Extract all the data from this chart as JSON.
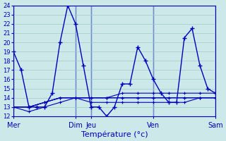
{
  "title": "",
  "xlabel": "Température (°c)",
  "ylabel": "",
  "ylim": [
    12,
    24
  ],
  "yticks": [
    12,
    13,
    14,
    15,
    16,
    17,
    18,
    19,
    20,
    21,
    22,
    23,
    24
  ],
  "background_color": "#cce8e8",
  "grid_color": "#99cccc",
  "line_color": "#0000bb",
  "series": [
    {
      "x": [
        0,
        1,
        2,
        3,
        4,
        5,
        6,
        7,
        8,
        9,
        10,
        11,
        12,
        13,
        14,
        15,
        16,
        17,
        18,
        19,
        20,
        21,
        22,
        23,
        24,
        25,
        26
      ],
      "y": [
        19,
        17,
        13,
        13,
        13,
        14.5,
        20,
        24,
        22,
        17.5,
        13,
        13,
        12,
        13,
        15.5,
        15.5,
        19.5,
        18,
        16,
        14.5,
        13.5,
        13.5,
        20.5,
        21.5,
        17.5,
        15,
        14.5
      ]
    },
    {
      "x": [
        0,
        2,
        4,
        6,
        8,
        10,
        12,
        14,
        16,
        18,
        20,
        22,
        24,
        26
      ],
      "y": [
        13,
        12.5,
        13,
        13.5,
        14,
        13.5,
        13.5,
        13.5,
        13.5,
        13.5,
        13.5,
        13.5,
        14,
        14
      ]
    },
    {
      "x": [
        0,
        2,
        4,
        6,
        8,
        10,
        12,
        14,
        16,
        18,
        20,
        22,
        24,
        26
      ],
      "y": [
        13,
        13,
        13.5,
        14,
        14,
        14,
        14,
        14,
        14,
        14,
        14,
        14,
        14,
        14
      ]
    },
    {
      "x": [
        0,
        2,
        4,
        6,
        8,
        10,
        12,
        14,
        16,
        18,
        20,
        22,
        24,
        26
      ],
      "y": [
        13,
        13,
        13.5,
        14,
        14,
        14,
        14,
        14,
        14,
        14,
        14,
        14,
        14,
        14
      ]
    },
    {
      "x": [
        0,
        2,
        4,
        6,
        8,
        10,
        12,
        14,
        16,
        18,
        20,
        22,
        24,
        26
      ],
      "y": [
        13,
        13,
        13.5,
        14,
        14,
        14,
        14,
        14.5,
        14.5,
        14.5,
        14.5,
        14.5,
        14.5,
        14.5
      ]
    }
  ],
  "vlines": [
    0,
    8,
    10,
    18,
    26
  ],
  "xlim": [
    0,
    26
  ],
  "x_tick_positions": [
    0,
    8,
    10,
    18,
    26
  ],
  "x_tick_labels": [
    "Mer",
    "Dim",
    "Jeu",
    "Ven",
    "Sam"
  ]
}
